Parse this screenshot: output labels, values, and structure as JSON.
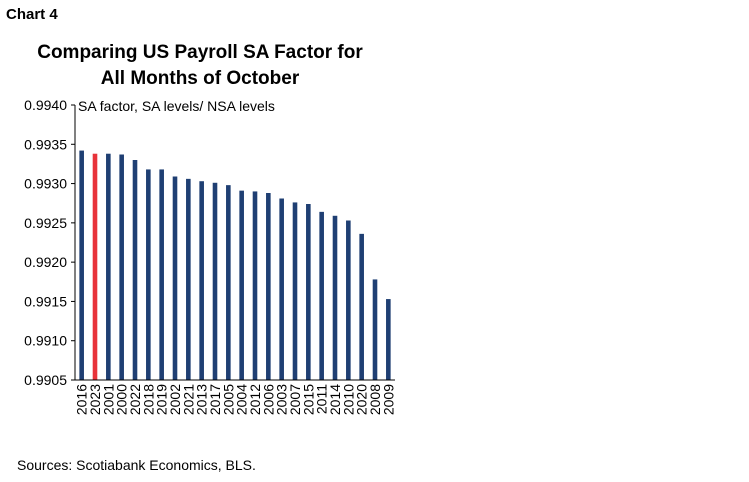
{
  "chart_label": "Chart 4",
  "title_lines": [
    "Comparing US Payroll SA Factor for",
    "All Months of October"
  ],
  "source": "Sources: Scotiabank Economics, BLS.",
  "colors": {
    "bar": "#1f3f73",
    "highlight": "#e8333a",
    "axis": "#000000"
  },
  "chart_data": {
    "type": "bar",
    "title": "Comparing US Payroll SA Factor for All Months of October",
    "ylabel": "SA factor, SA levels/ NSA levels",
    "xlabel": "",
    "ylim": [
      0.9905,
      0.994
    ],
    "yticks": [
      "0.9940",
      "0.9935",
      "0.9930",
      "0.9925",
      "0.9920",
      "0.9915",
      "0.9910",
      "0.9905"
    ],
    "categories": [
      "2016",
      "2023",
      "2001",
      "2000",
      "2022",
      "2018",
      "2019",
      "2002",
      "2021",
      "2013",
      "2017",
      "2005",
      "2004",
      "2012",
      "2006",
      "2003",
      "2007",
      "2015",
      "2011",
      "2014",
      "2010",
      "2020",
      "2008",
      "2009"
    ],
    "values": [
      0.99342,
      0.99338,
      0.99338,
      0.99337,
      0.9933,
      0.99318,
      0.99318,
      0.99309,
      0.99306,
      0.99303,
      0.99301,
      0.99298,
      0.99291,
      0.9929,
      0.99288,
      0.99281,
      0.99276,
      0.99274,
      0.99264,
      0.99259,
      0.99253,
      0.99236,
      0.99178,
      0.99153
    ],
    "highlight_category": "2023",
    "grid": false
  }
}
